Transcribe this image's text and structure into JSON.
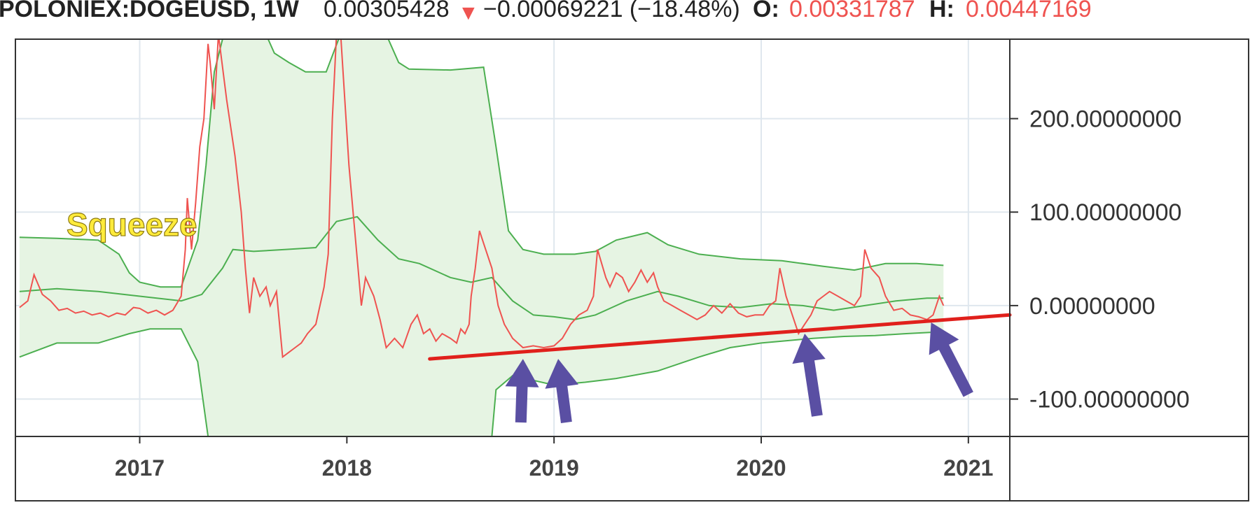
{
  "header": {
    "symbol": "POLONIEX:DOGEUSD, 1W",
    "price": "0.00305428",
    "change_icon": "down-triangle-icon",
    "change": "−0.00069221 (−18.48%)",
    "open_label": "O:",
    "open_value": "0.00331787",
    "high_label": "H:",
    "high_value": "0.00447169",
    "colors": {
      "text": "#222222",
      "down": "#ef5350"
    }
  },
  "annotation": {
    "text": "Squeeze",
    "color": "#ffeb3b"
  },
  "colors": {
    "price_line": "#ef5350",
    "bands": "#4caf50",
    "band_fill": "#e6f4e3",
    "trendline": "#e0201c",
    "arrows": "#5a4fa3",
    "grid": "#dfe7ee"
  },
  "chart_data": {
    "type": "line",
    "title": "POLONIEX:DOGEUSD, 1W",
    "x_unit": "year",
    "ylim": [
      -140,
      285
    ],
    "xlim": [
      2016.4,
      2021.2
    ],
    "yticks": [
      {
        "value": 200,
        "label": "200.00000000"
      },
      {
        "value": 100,
        "label": "100.00000000"
      },
      {
        "value": 0,
        "label": "0.00000000"
      },
      {
        "value": -100,
        "label": "-100.00000000"
      }
    ],
    "xticks": [
      {
        "value": 2017,
        "label": "2017"
      },
      {
        "value": 2018,
        "label": "2018"
      },
      {
        "value": 2019,
        "label": "2019"
      },
      {
        "value": 2020,
        "label": "2020"
      },
      {
        "value": 2021,
        "label": "2021"
      }
    ],
    "grid": true,
    "series": [
      {
        "role": "price",
        "points": [
          [
            2016.42,
            -2
          ],
          [
            2016.46,
            5
          ],
          [
            2016.49,
            33
          ],
          [
            2016.53,
            12
          ],
          [
            2016.57,
            5
          ],
          [
            2016.61,
            -5
          ],
          [
            2016.65,
            -3
          ],
          [
            2016.69,
            -8
          ],
          [
            2016.73,
            -6
          ],
          [
            2016.77,
            -10
          ],
          [
            2016.81,
            -8
          ],
          [
            2016.85,
            -12
          ],
          [
            2016.89,
            -8
          ],
          [
            2016.93,
            -10
          ],
          [
            2016.97,
            -2
          ],
          [
            2017.0,
            -3
          ],
          [
            2017.04,
            -8
          ],
          [
            2017.08,
            -5
          ],
          [
            2017.12,
            -10
          ],
          [
            2017.16,
            -5
          ],
          [
            2017.2,
            10
          ],
          [
            2017.22,
            60
          ],
          [
            2017.23,
            115
          ],
          [
            2017.25,
            60
          ],
          [
            2017.27,
            110
          ],
          [
            2017.29,
            170
          ],
          [
            2017.31,
            200
          ],
          [
            2017.33,
            280
          ],
          [
            2017.34,
            260
          ],
          [
            2017.36,
            210
          ],
          [
            2017.38,
            290
          ],
          [
            2017.42,
            220
          ],
          [
            2017.46,
            160
          ],
          [
            2017.49,
            100
          ],
          [
            2017.51,
            40
          ],
          [
            2017.53,
            -8
          ],
          [
            2017.55,
            30
          ],
          [
            2017.58,
            10
          ],
          [
            2017.61,
            20
          ],
          [
            2017.63,
            0
          ],
          [
            2017.66,
            15
          ],
          [
            2017.69,
            -55
          ],
          [
            2017.72,
            -50
          ],
          [
            2017.75,
            -45
          ],
          [
            2017.78,
            -40
          ],
          [
            2017.81,
            -30
          ],
          [
            2017.85,
            -20
          ],
          [
            2017.87,
            0
          ],
          [
            2017.89,
            20
          ],
          [
            2017.91,
            55
          ],
          [
            2017.93,
            200
          ],
          [
            2017.95,
            290
          ],
          [
            2017.97,
            290
          ],
          [
            2017.99,
            220
          ],
          [
            2018.01,
            150
          ],
          [
            2018.03,
            100
          ],
          [
            2018.05,
            50
          ],
          [
            2018.07,
            0
          ],
          [
            2018.09,
            30
          ],
          [
            2018.11,
            20
          ],
          [
            2018.13,
            10
          ],
          [
            2018.16,
            -15
          ],
          [
            2018.19,
            -45
          ],
          [
            2018.23,
            -35
          ],
          [
            2018.27,
            -45
          ],
          [
            2018.31,
            -20
          ],
          [
            2018.34,
            -10
          ],
          [
            2018.37,
            -30
          ],
          [
            2018.4,
            -25
          ],
          [
            2018.43,
            -38
          ],
          [
            2018.46,
            -30
          ],
          [
            2018.5,
            -35
          ],
          [
            2018.53,
            -40
          ],
          [
            2018.55,
            -25
          ],
          [
            2018.57,
            -30
          ],
          [
            2018.59,
            -20
          ],
          [
            2018.6,
            10
          ],
          [
            2018.62,
            40
          ],
          [
            2018.64,
            80
          ],
          [
            2018.67,
            60
          ],
          [
            2018.7,
            40
          ],
          [
            2018.73,
            0
          ],
          [
            2018.76,
            -20
          ],
          [
            2018.8,
            -35
          ],
          [
            2018.85,
            -45
          ],
          [
            2018.9,
            -43
          ],
          [
            2018.95,
            -45
          ],
          [
            2019.0,
            -43
          ],
          [
            2019.04,
            -35
          ],
          [
            2019.08,
            -20
          ],
          [
            2019.12,
            -10
          ],
          [
            2019.16,
            -5
          ],
          [
            2019.19,
            10
          ],
          [
            2019.21,
            60
          ],
          [
            2019.23,
            45
          ],
          [
            2019.25,
            30
          ],
          [
            2019.27,
            20
          ],
          [
            2019.3,
            35
          ],
          [
            2019.33,
            30
          ],
          [
            2019.36,
            15
          ],
          [
            2019.39,
            25
          ],
          [
            2019.42,
            38
          ],
          [
            2019.45,
            25
          ],
          [
            2019.48,
            35
          ],
          [
            2019.5,
            20
          ],
          [
            2019.53,
            5
          ],
          [
            2019.57,
            0
          ],
          [
            2019.61,
            -5
          ],
          [
            2019.65,
            -10
          ],
          [
            2019.69,
            -15
          ],
          [
            2019.73,
            -10
          ],
          [
            2019.77,
            0
          ],
          [
            2019.81,
            -8
          ],
          [
            2019.85,
            2
          ],
          [
            2019.89,
            -8
          ],
          [
            2019.93,
            -12
          ],
          [
            2019.97,
            -10
          ],
          [
            2020.01,
            -10
          ],
          [
            2020.04,
            0
          ],
          [
            2020.07,
            5
          ],
          [
            2020.09,
            40
          ],
          [
            2020.12,
            10
          ],
          [
            2020.15,
            -10
          ],
          [
            2020.18,
            -30
          ],
          [
            2020.21,
            -20
          ],
          [
            2020.24,
            -10
          ],
          [
            2020.27,
            5
          ],
          [
            2020.3,
            10
          ],
          [
            2020.33,
            15
          ],
          [
            2020.37,
            10
          ],
          [
            2020.41,
            5
          ],
          [
            2020.45,
            0
          ],
          [
            2020.48,
            10
          ],
          [
            2020.5,
            60
          ],
          [
            2020.53,
            40
          ],
          [
            2020.57,
            30
          ],
          [
            2020.6,
            10
          ],
          [
            2020.64,
            -5
          ],
          [
            2020.68,
            -3
          ],
          [
            2020.72,
            -10
          ],
          [
            2020.76,
            -12
          ],
          [
            2020.8,
            -15
          ],
          [
            2020.83,
            -10
          ],
          [
            2020.86,
            10
          ],
          [
            2020.88,
            0
          ]
        ]
      },
      {
        "role": "upper_band",
        "points": [
          [
            2016.42,
            73
          ],
          [
            2016.6,
            72
          ],
          [
            2016.8,
            70
          ],
          [
            2016.9,
            55
          ],
          [
            2016.95,
            35
          ],
          [
            2017.0,
            25
          ],
          [
            2017.1,
            20
          ],
          [
            2017.2,
            20
          ],
          [
            2017.28,
            70
          ],
          [
            2017.32,
            150
          ],
          [
            2017.36,
            250
          ],
          [
            2017.4,
            285
          ],
          [
            2017.62,
            285
          ],
          [
            2017.65,
            270
          ],
          [
            2017.72,
            260
          ],
          [
            2017.8,
            250
          ],
          [
            2017.9,
            250
          ],
          [
            2017.96,
            285
          ],
          [
            2018.2,
            285
          ],
          [
            2018.25,
            260
          ],
          [
            2018.3,
            253
          ],
          [
            2018.5,
            252
          ],
          [
            2018.66,
            255
          ],
          [
            2018.72,
            170
          ],
          [
            2018.78,
            80
          ],
          [
            2018.85,
            60
          ],
          [
            2018.95,
            55
          ],
          [
            2019.1,
            55
          ],
          [
            2019.2,
            58
          ],
          [
            2019.3,
            70
          ],
          [
            2019.45,
            78
          ],
          [
            2019.55,
            65
          ],
          [
            2019.7,
            55
          ],
          [
            2019.9,
            50
          ],
          [
            2020.1,
            48
          ],
          [
            2020.3,
            42
          ],
          [
            2020.45,
            38
          ],
          [
            2020.6,
            45
          ],
          [
            2020.75,
            45
          ],
          [
            2020.88,
            43
          ]
        ]
      },
      {
        "role": "middle_band",
        "points": [
          [
            2016.42,
            15
          ],
          [
            2016.6,
            18
          ],
          [
            2016.8,
            15
          ],
          [
            2017.0,
            10
          ],
          [
            2017.2,
            5
          ],
          [
            2017.3,
            12
          ],
          [
            2017.4,
            40
          ],
          [
            2017.45,
            60
          ],
          [
            2017.55,
            58
          ],
          [
            2017.7,
            60
          ],
          [
            2017.85,
            62
          ],
          [
            2017.95,
            90
          ],
          [
            2018.05,
            95
          ],
          [
            2018.15,
            70
          ],
          [
            2018.25,
            50
          ],
          [
            2018.35,
            45
          ],
          [
            2018.5,
            30
          ],
          [
            2018.6,
            25
          ],
          [
            2018.7,
            30
          ],
          [
            2018.8,
            5
          ],
          [
            2018.9,
            -10
          ],
          [
            2019.0,
            -12
          ],
          [
            2019.1,
            -15
          ],
          [
            2019.2,
            -10
          ],
          [
            2019.35,
            5
          ],
          [
            2019.5,
            15
          ],
          [
            2019.6,
            10
          ],
          [
            2019.75,
            0
          ],
          [
            2019.9,
            -2
          ],
          [
            2020.05,
            2
          ],
          [
            2020.2,
            0
          ],
          [
            2020.35,
            -5
          ],
          [
            2020.5,
            0
          ],
          [
            2020.65,
            5
          ],
          [
            2020.8,
            8
          ],
          [
            2020.88,
            8
          ]
        ]
      },
      {
        "role": "lower_band",
        "points": [
          [
            2016.42,
            -55
          ],
          [
            2016.6,
            -40
          ],
          [
            2016.8,
            -40
          ],
          [
            2016.95,
            -30
          ],
          [
            2017.05,
            -25
          ],
          [
            2017.2,
            -25
          ],
          [
            2017.28,
            -60
          ],
          [
            2017.33,
            -140
          ],
          [
            2018.7,
            -140
          ],
          [
            2018.72,
            -90
          ],
          [
            2018.8,
            -75
          ],
          [
            2018.9,
            -80
          ],
          [
            2019.0,
            -85
          ],
          [
            2019.15,
            -82
          ],
          [
            2019.3,
            -78
          ],
          [
            2019.5,
            -70
          ],
          [
            2019.7,
            -55
          ],
          [
            2019.85,
            -45
          ],
          [
            2020.0,
            -40
          ],
          [
            2020.1,
            -38
          ],
          [
            2020.25,
            -35
          ],
          [
            2020.4,
            -33
          ],
          [
            2020.55,
            -32
          ],
          [
            2020.7,
            -30
          ],
          [
            2020.88,
            -28
          ]
        ]
      },
      {
        "role": "trendline",
        "points": [
          [
            2018.4,
            -57
          ],
          [
            2021.2,
            -10
          ]
        ]
      }
    ],
    "annotation_arrows": [
      {
        "tip": [
          2018.85,
          -57
        ],
        "tail": [
          2018.84,
          -125
        ]
      },
      {
        "tip": [
          2019.02,
          -57
        ],
        "tail": [
          2019.06,
          -125
        ]
      },
      {
        "tip": [
          2020.21,
          -30
        ],
        "tail": [
          2020.27,
          -118
        ]
      },
      {
        "tip": [
          2020.82,
          -18
        ],
        "tail": [
          2021.0,
          -95
        ]
      }
    ]
  }
}
